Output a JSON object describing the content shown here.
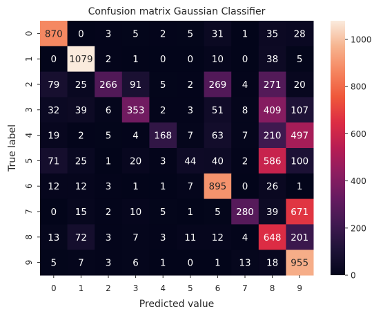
{
  "chart_data": {
    "type": "heatmap",
    "title": "Confusion matrix Gaussian Classifier",
    "xlabel": "Predicted value",
    "ylabel": "True label",
    "x_categories": [
      "0",
      "1",
      "2",
      "3",
      "4",
      "5",
      "6",
      "7",
      "8",
      "9"
    ],
    "y_categories": [
      "0",
      "1",
      "2",
      "3",
      "4",
      "5",
      "6",
      "7",
      "8",
      "9"
    ],
    "values": [
      [
        870,
        0,
        3,
        5,
        2,
        5,
        31,
        1,
        35,
        28
      ],
      [
        0,
        1079,
        2,
        1,
        0,
        0,
        10,
        0,
        38,
        5
      ],
      [
        79,
        25,
        266,
        91,
        5,
        2,
        269,
        4,
        271,
        20
      ],
      [
        32,
        39,
        6,
        353,
        2,
        3,
        51,
        8,
        409,
        107
      ],
      [
        19,
        2,
        5,
        4,
        168,
        7,
        63,
        7,
        210,
        497
      ],
      [
        71,
        25,
        1,
        20,
        3,
        44,
        40,
        2,
        586,
        100
      ],
      [
        12,
        12,
        3,
        1,
        1,
        7,
        895,
        0,
        26,
        1
      ],
      [
        0,
        15,
        2,
        10,
        5,
        1,
        5,
        280,
        39,
        671
      ],
      [
        13,
        72,
        3,
        7,
        3,
        11,
        12,
        4,
        648,
        201
      ],
      [
        5,
        7,
        3,
        6,
        1,
        0,
        1,
        13,
        18,
        955
      ]
    ],
    "colorbar": {
      "colormap": "rocket",
      "range": [
        0,
        1079
      ],
      "ticks": [
        "0",
        "200",
        "400",
        "600",
        "800",
        "1000"
      ]
    },
    "grid": false,
    "annotated": true
  }
}
